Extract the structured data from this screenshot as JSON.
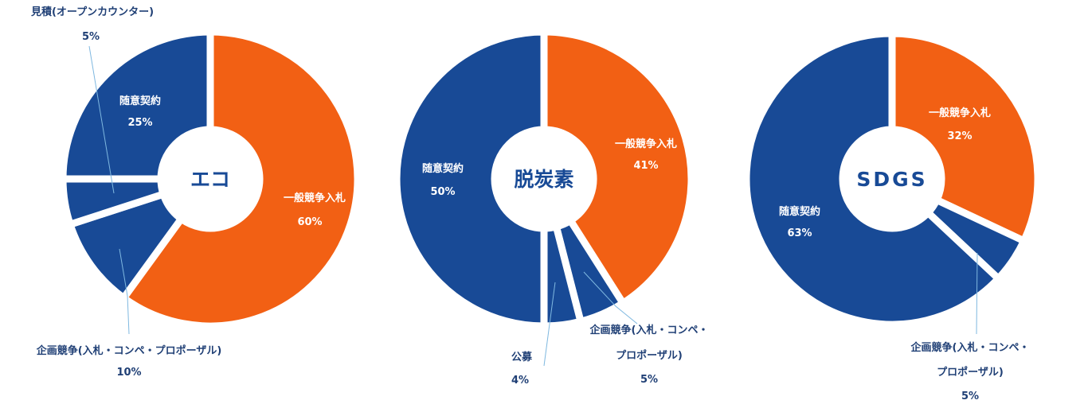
{
  "colors": {
    "blue": "#184A96",
    "orange": "#F26014",
    "leader": "#7FB8E0",
    "dark_text": "#1F3F75",
    "white": "#ffffff"
  },
  "chart_data": [
    {
      "type": "pie",
      "center_label": "エコ",
      "slices": [
        {
          "name": "一般競争入札",
          "value": 60,
          "pct_label": "60%",
          "color": "orange"
        },
        {
          "name": "企画競争(入札・コンペ・プロポーザル)",
          "value": 10,
          "pct_label": "10%",
          "color": "blue"
        },
        {
          "name": "見積(オープンカウンター)",
          "value": 5,
          "pct_label": "5%",
          "color": "blue"
        },
        {
          "name": "随意契約",
          "value": 25,
          "pct_label": "25%",
          "color": "blue"
        }
      ]
    },
    {
      "type": "pie",
      "center_label": "脱炭素",
      "slices": [
        {
          "name": "一般競争入札",
          "value": 41,
          "pct_label": "41%",
          "color": "orange"
        },
        {
          "name": "企画競争(入札・コンペ・プロポーザル)",
          "name_lines": [
            "企画競争(入札・コンペ・",
            "プロポーザル)"
          ],
          "value": 5,
          "pct_label": "5%",
          "color": "blue"
        },
        {
          "name": "公募",
          "value": 4,
          "pct_label": "4%",
          "color": "blue"
        },
        {
          "name": "随意契約",
          "value": 50,
          "pct_label": "50%",
          "color": "blue"
        }
      ]
    },
    {
      "type": "pie",
      "center_label": "SDGS",
      "slices": [
        {
          "name": "一般競争入札",
          "value": 32,
          "pct_label": "32%",
          "color": "orange"
        },
        {
          "name": "企画競争(入札・コンペ・プロポーザル)",
          "name_lines": [
            "企画競争(入札・コンペ・",
            "プロポーザル)"
          ],
          "value": 5,
          "pct_label": "5%",
          "color": "blue"
        },
        {
          "name": "随意契約",
          "value": 63,
          "pct_label": "63%",
          "color": "blue"
        }
      ]
    }
  ]
}
